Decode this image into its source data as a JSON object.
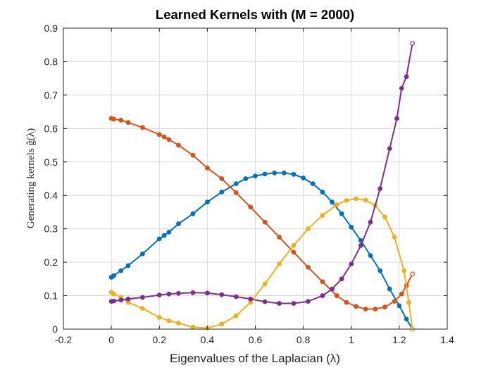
{
  "chart_data": {
    "type": "line",
    "title": "Learned Kernels with (M = 2000)",
    "xlabel": "Eigenvalues of the Laplacian (λ)",
    "ylabel": "Generating kernels ĝ(λ)",
    "xlim": [
      -0.2,
      1.4
    ],
    "ylim": [
      0,
      0.9
    ],
    "xticks": [
      "-0.2",
      "0",
      "0.2",
      "0.4",
      "0.6",
      "0.8",
      "1",
      "1.2",
      "1.4"
    ],
    "yticks": [
      "0",
      "0.1",
      "0.2",
      "0.3",
      "0.4",
      "0.5",
      "0.6",
      "0.7",
      "0.8",
      "0.9"
    ],
    "grid": true,
    "legend": "none",
    "series": [
      {
        "color": "#0072BD",
        "points": [
          [
            0.0,
            0.155
          ],
          [
            0.01,
            0.16
          ],
          [
            0.04,
            0.175
          ],
          [
            0.07,
            0.19
          ],
          [
            0.13,
            0.225
          ],
          [
            0.2,
            0.27
          ],
          [
            0.22,
            0.28
          ],
          [
            0.24,
            0.29
          ],
          [
            0.28,
            0.315
          ],
          [
            0.34,
            0.345
          ],
          [
            0.4,
            0.38
          ],
          [
            0.46,
            0.41
          ],
          [
            0.52,
            0.435
          ],
          [
            0.56,
            0.45
          ],
          [
            0.6,
            0.458
          ],
          [
            0.64,
            0.464
          ],
          [
            0.68,
            0.467
          ],
          [
            0.72,
            0.467
          ],
          [
            0.76,
            0.463
          ],
          [
            0.8,
            0.452
          ],
          [
            0.84,
            0.435
          ],
          [
            0.88,
            0.41
          ],
          [
            0.92,
            0.38
          ],
          [
            0.96,
            0.345
          ],
          [
            1.0,
            0.305
          ],
          [
            1.04,
            0.265
          ],
          [
            1.08,
            0.22
          ],
          [
            1.12,
            0.175
          ],
          [
            1.16,
            0.12
          ],
          [
            1.2,
            0.07
          ],
          [
            1.23,
            0.03
          ],
          [
            1.255,
            0.0
          ]
        ]
      },
      {
        "color": "#D95319",
        "points": [
          [
            0.0,
            0.63
          ],
          [
            0.01,
            0.628
          ],
          [
            0.04,
            0.625
          ],
          [
            0.07,
            0.618
          ],
          [
            0.13,
            0.603
          ],
          [
            0.2,
            0.582
          ],
          [
            0.22,
            0.575
          ],
          [
            0.24,
            0.567
          ],
          [
            0.28,
            0.55
          ],
          [
            0.34,
            0.52
          ],
          [
            0.4,
            0.482
          ],
          [
            0.46,
            0.45
          ],
          [
            0.52,
            0.408
          ],
          [
            0.58,
            0.365
          ],
          [
            0.64,
            0.32
          ],
          [
            0.7,
            0.275
          ],
          [
            0.76,
            0.23
          ],
          [
            0.82,
            0.185
          ],
          [
            0.88,
            0.142
          ],
          [
            0.94,
            0.1
          ],
          [
            0.98,
            0.08
          ],
          [
            1.02,
            0.068
          ],
          [
            1.06,
            0.06
          ],
          [
            1.1,
            0.06
          ],
          [
            1.14,
            0.066
          ],
          [
            1.18,
            0.083
          ],
          [
            1.21,
            0.105
          ],
          [
            1.23,
            0.13
          ],
          [
            1.255,
            0.165
          ]
        ]
      },
      {
        "color": "#EDB120",
        "points": [
          [
            0.0,
            0.11
          ],
          [
            0.01,
            0.105
          ],
          [
            0.04,
            0.095
          ],
          [
            0.07,
            0.08
          ],
          [
            0.13,
            0.062
          ],
          [
            0.2,
            0.035
          ],
          [
            0.24,
            0.025
          ],
          [
            0.28,
            0.018
          ],
          [
            0.34,
            0.006
          ],
          [
            0.4,
            0.003
          ],
          [
            0.46,
            0.015
          ],
          [
            0.52,
            0.04
          ],
          [
            0.58,
            0.08
          ],
          [
            0.64,
            0.135
          ],
          [
            0.7,
            0.195
          ],
          [
            0.76,
            0.25
          ],
          [
            0.82,
            0.3
          ],
          [
            0.88,
            0.34
          ],
          [
            0.94,
            0.372
          ],
          [
            0.98,
            0.385
          ],
          [
            1.02,
            0.39
          ],
          [
            1.06,
            0.386
          ],
          [
            1.1,
            0.37
          ],
          [
            1.14,
            0.335
          ],
          [
            1.18,
            0.275
          ],
          [
            1.22,
            0.175
          ],
          [
            1.24,
            0.08
          ],
          [
            1.255,
            0.0
          ]
        ]
      },
      {
        "color": "#7E2F8E",
        "points": [
          [
            0.0,
            0.083
          ],
          [
            0.01,
            0.084
          ],
          [
            0.04,
            0.087
          ],
          [
            0.07,
            0.09
          ],
          [
            0.13,
            0.095
          ],
          [
            0.2,
            0.102
          ],
          [
            0.24,
            0.105
          ],
          [
            0.28,
            0.107
          ],
          [
            0.34,
            0.109
          ],
          [
            0.4,
            0.108
          ],
          [
            0.46,
            0.103
          ],
          [
            0.52,
            0.097
          ],
          [
            0.58,
            0.09
          ],
          [
            0.64,
            0.082
          ],
          [
            0.7,
            0.077
          ],
          [
            0.76,
            0.077
          ],
          [
            0.82,
            0.083
          ],
          [
            0.88,
            0.1
          ],
          [
            0.92,
            0.12
          ],
          [
            0.96,
            0.15
          ],
          [
            1.0,
            0.195
          ],
          [
            1.04,
            0.25
          ],
          [
            1.08,
            0.32
          ],
          [
            1.12,
            0.42
          ],
          [
            1.16,
            0.54
          ],
          [
            1.19,
            0.63
          ],
          [
            1.21,
            0.72
          ],
          [
            1.23,
            0.755
          ],
          [
            1.255,
            0.855
          ]
        ]
      }
    ]
  }
}
